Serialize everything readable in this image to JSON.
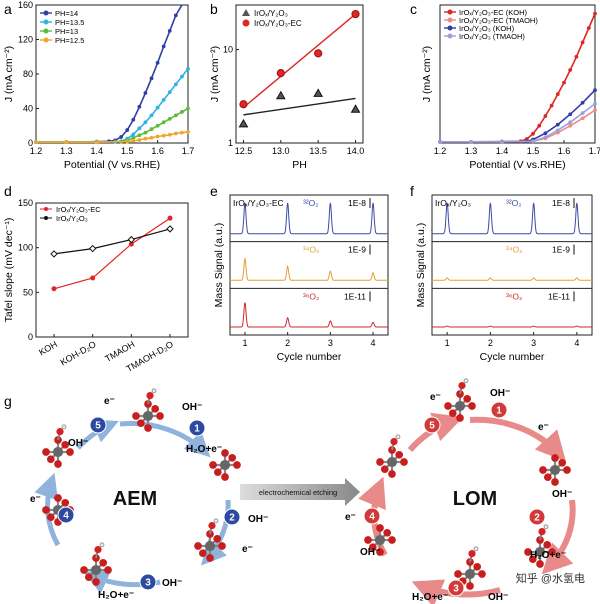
{
  "chart_data": [
    {
      "panel": "a",
      "type": "line",
      "xlabel": "Potential (V vs.RHE)",
      "ylabel": "J (mA cm⁻²)",
      "xlim": [
        1.2,
        1.7
      ],
      "ylim": [
        0,
        160
      ],
      "xticks": [
        "1.2",
        "1.3",
        "1.4",
        "1.5",
        "1.6",
        "1.7"
      ],
      "yticks": [
        "0",
        "40",
        "80",
        "120",
        "160"
      ],
      "legend": "top-left",
      "series": [
        {
          "name": "PH=14",
          "color": "#2f3fa3",
          "x": [
            1.2,
            1.3,
            1.4,
            1.44,
            1.46,
            1.48,
            1.5,
            1.52,
            1.54,
            1.56,
            1.58,
            1.6,
            1.62,
            1.64,
            1.66,
            1.68
          ],
          "values": [
            1,
            1,
            1.5,
            2,
            3,
            7,
            15,
            27,
            42,
            58,
            75,
            93,
            112,
            130,
            148,
            162
          ]
        },
        {
          "name": "PH=13.5",
          "color": "#2eb1e6",
          "x": [
            1.2,
            1.3,
            1.4,
            1.46,
            1.48,
            1.5,
            1.52,
            1.54,
            1.56,
            1.58,
            1.6,
            1.62,
            1.64,
            1.66,
            1.68,
            1.7
          ],
          "values": [
            1,
            1,
            1,
            1.5,
            2,
            5,
            10,
            17,
            24,
            32,
            41,
            50,
            59,
            68,
            77,
            86
          ]
        },
        {
          "name": "PH=13",
          "color": "#5dbb3c",
          "x": [
            1.2,
            1.3,
            1.4,
            1.48,
            1.5,
            1.52,
            1.54,
            1.56,
            1.58,
            1.6,
            1.62,
            1.64,
            1.66,
            1.68,
            1.7
          ],
          "values": [
            1,
            1,
            1,
            1.5,
            3,
            6,
            9,
            12,
            16,
            20,
            24,
            28,
            32,
            36,
            40
          ]
        },
        {
          "name": "PH=12.5",
          "color": "#f0a531",
          "x": [
            1.2,
            1.3,
            1.4,
            1.5,
            1.52,
            1.54,
            1.56,
            1.58,
            1.6,
            1.62,
            1.64,
            1.66,
            1.68,
            1.7
          ],
          "values": [
            1,
            1,
            1,
            1.5,
            2.5,
            3.5,
            5,
            6,
            7.5,
            8.5,
            9.5,
            11,
            12,
            13
          ]
        }
      ]
    },
    {
      "panel": "b",
      "type": "scatter",
      "xlabel": "PH",
      "ylabel": "J (mA cm⁻²)",
      "yscale": "log",
      "xlim": [
        12.4,
        14.1
      ],
      "ylim": [
        1,
        30
      ],
      "xticks": [
        "12.5",
        "13.0",
        "13.5",
        "14.0"
      ],
      "yticks": [
        "1",
        "10"
      ],
      "legend": "top-left",
      "series": [
        {
          "name": "IrOₓ/Y₂O₃",
          "marker": "triangle",
          "color": "#222222",
          "x": [
            12.5,
            13.0,
            13.5,
            14.0
          ],
          "values": [
            1.6,
            3.2,
            3.4,
            2.3
          ],
          "fit": [
            2.0,
            3.0
          ]
        },
        {
          "name": "IrOₓ/Y₂O₃-EC",
          "marker": "circle",
          "color": "#e02525",
          "x": [
            12.5,
            13.0,
            13.5,
            14.0
          ],
          "values": [
            2.6,
            5.6,
            9.1,
            24
          ],
          "fit": [
            2.4,
            24
          ]
        }
      ]
    },
    {
      "panel": "c",
      "type": "line",
      "xlabel": "Potential (V vs.RHE)",
      "ylabel": "J (mA cm⁻²)",
      "xlim": [
        1.2,
        1.7
      ],
      "ylim": [
        0,
        240
      ],
      "xticks": [
        "1.2",
        "1.3",
        "1.4",
        "1.5",
        "1.6",
        "1.7"
      ],
      "legend": "top-left",
      "series": [
        {
          "name": "IrOₓ/Y₂O₃-EC (KOH)",
          "color": "#e02525",
          "x": [
            1.2,
            1.3,
            1.4,
            1.46,
            1.48,
            1.5,
            1.52,
            1.54,
            1.56,
            1.58,
            1.6,
            1.62,
            1.64,
            1.66,
            1.68,
            1.7
          ],
          "values": [
            2,
            2,
            2.5,
            3,
            7,
            16,
            30,
            47,
            65,
            85,
            105,
            127,
            150,
            175,
            200,
            225
          ]
        },
        {
          "name": "IrOₓ/Y₂O₃-EC (TMAOH)",
          "color": "#f08a8a",
          "x": [
            1.2,
            1.3,
            1.4,
            1.5,
            1.54,
            1.58,
            1.62,
            1.66,
            1.7
          ],
          "values": [
            2,
            2,
            2,
            3,
            8,
            18,
            30,
            43,
            57
          ]
        },
        {
          "name": "IrOₓ/Y₂O₃ (KOH)",
          "color": "#2f3fa3",
          "x": [
            1.2,
            1.3,
            1.4,
            1.48,
            1.5,
            1.54,
            1.58,
            1.62,
            1.66,
            1.7
          ],
          "values": [
            2,
            2,
            2,
            3,
            6,
            17,
            32,
            50,
            70,
            92
          ]
        },
        {
          "name": "IrOₓ/Y₂O₃ (TMAOH)",
          "color": "#9aa0d8",
          "x": [
            1.2,
            1.3,
            1.4,
            1.5,
            1.54,
            1.58,
            1.62,
            1.66,
            1.7
          ],
          "values": [
            2,
            2,
            2,
            3,
            10,
            22,
            36,
            52,
            68
          ]
        }
      ]
    },
    {
      "panel": "d",
      "type": "line",
      "ylabel": "Tafel slope (mV dec⁻¹)",
      "ylim": [
        0,
        150
      ],
      "yticks": [
        "0",
        "50",
        "100",
        "150"
      ],
      "categories": [
        "KOH",
        "KOH-D₂O",
        "TMAOH",
        "TMAOH-D₂O"
      ],
      "legend": "top-left",
      "series": [
        {
          "name": "IrOₓ/Y₂O₃-EC",
          "color": "#e02525",
          "values": [
            54,
            66,
            104,
            133
          ]
        },
        {
          "name": "IrOₓ/Y₂O₃",
          "color": "#111111",
          "values": [
            93,
            99,
            109,
            121
          ]
        }
      ]
    },
    {
      "panel": "e",
      "type": "line",
      "xlabel": "Cycle number",
      "ylabel": "Mass Signal (a.u.)",
      "xticks": [
        "1",
        "2",
        "3",
        "4"
      ],
      "title": "IrOₓ/Y₂O₃-EC",
      "rows": [
        {
          "label": "³²O₂",
          "scale": "1E-8",
          "color": "#3a4ca8",
          "peaks": [
            1.0,
            1.0,
            1.0,
            1.0
          ]
        },
        {
          "label": "³⁴O₂",
          "scale": "1E-9",
          "color": "#e0a030",
          "peaks": [
            0.7,
            0.45,
            0.3,
            0.25
          ]
        },
        {
          "label": "³⁶O₂",
          "scale": "1E-11",
          "color": "#d02a2a",
          "peaks": [
            0.8,
            0.3,
            0.2,
            0.15
          ]
        }
      ]
    },
    {
      "panel": "f",
      "type": "line",
      "xlabel": "Cycle number",
      "ylabel": "Mass Signal (a.u.)",
      "xticks": [
        "1",
        "2",
        "3",
        "4"
      ],
      "title": "IrOₓ/Y₂O₃",
      "rows": [
        {
          "label": "³²O₂",
          "scale": "1E-8",
          "color": "#3a4ca8",
          "peaks": [
            1.0,
            1.0,
            1.0,
            1.0
          ]
        },
        {
          "label": "³⁴O₂",
          "scale": "1E-9",
          "color": "#e0a030",
          "peaks": [
            0.08,
            0.08,
            0.08,
            0.08
          ]
        },
        {
          "label": "³⁶O₂",
          "scale": "1E-11",
          "color": "#d02a2a",
          "peaks": [
            0.03,
            0.03,
            0.03,
            0.03
          ]
        }
      ]
    }
  ],
  "panel_labels": {
    "a": "a",
    "b": "b",
    "c": "c",
    "d": "d",
    "e": "e",
    "f": "f",
    "g": "g"
  },
  "mechanism": {
    "aem_title": "AEM",
    "lom_title": "LOM",
    "etching_label": "electrochemical etching",
    "aem_steps": [
      "1",
      "2",
      "3",
      "4",
      "5"
    ],
    "lom_steps": [
      "1",
      "2",
      "3",
      "4",
      "5"
    ],
    "species": {
      "oh": "OH⁻",
      "e": "e⁻",
      "h2o_e": "H₂O+e⁻"
    },
    "watermark": "知乎 @水氢电"
  },
  "colors": {
    "aem_accent": "#2b4aa0",
    "lom_accent": "#d23a3a",
    "ir": "#6a6a6a",
    "oxygen": "#cc1f1f"
  }
}
